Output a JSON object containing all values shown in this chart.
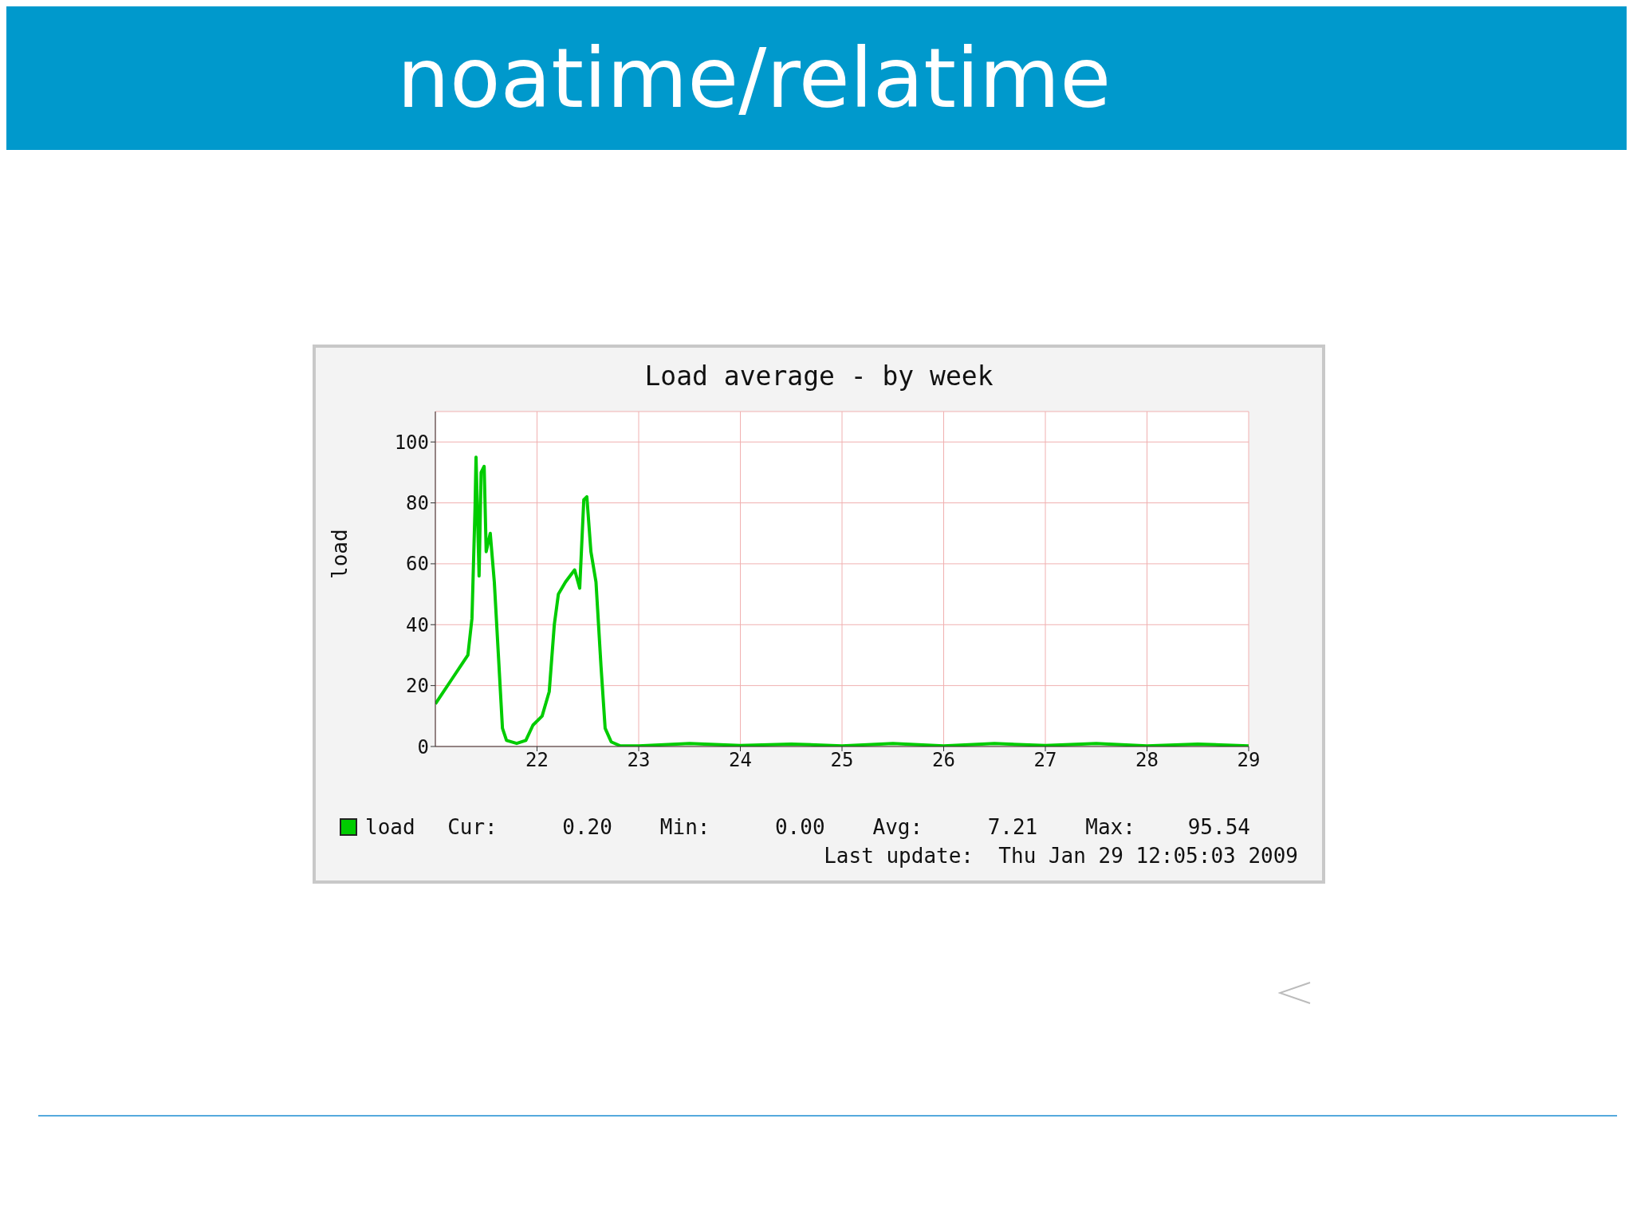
{
  "chart_data": {
    "type": "line",
    "title": "noatime/relatime",
    "subtitle": "Load average - by week",
    "ylabel": "load",
    "x": [
      21.0,
      21.06,
      21.16,
      21.26,
      21.32,
      21.36,
      21.39,
      21.4,
      21.43,
      21.45,
      21.48,
      21.5,
      21.54,
      21.58,
      21.62,
      21.66,
      21.7,
      21.8,
      21.89,
      21.96,
      22.05,
      22.12,
      22.17,
      22.21,
      22.28,
      22.37,
      22.42,
      22.46,
      22.49,
      22.53,
      22.58,
      22.63,
      22.67,
      22.73,
      22.82,
      23.0,
      23.5,
      24.0,
      24.5,
      25.0,
      25.5,
      26.0,
      26.5,
      27.0,
      27.5,
      28.0,
      28.5,
      29.0
    ],
    "series": [
      {
        "name": "load",
        "color": "#00cc00",
        "values": [
          14,
          17,
          22,
          27,
          30,
          42,
          78,
          95,
          56,
          90,
          92,
          64,
          70,
          54,
          30,
          6,
          2,
          1,
          2,
          7,
          10,
          18,
          40,
          50,
          54,
          58,
          52,
          81,
          82,
          64,
          54,
          26,
          6,
          1.5,
          0.2,
          0.2,
          1,
          0.3,
          0.8,
          0.2,
          1,
          0.2,
          1,
          0.3,
          1,
          0.2,
          0.8,
          0.2
        ]
      }
    ],
    "xlim": [
      21,
      29
    ],
    "xticks": [
      22,
      23,
      24,
      25,
      26,
      27,
      28,
      29
    ],
    "ylim": [
      0,
      110
    ],
    "yticks": [
      0,
      20,
      40,
      60,
      80,
      100
    ],
    "grid": true,
    "legend": "bottom left",
    "marker": "none",
    "line_style": "solid",
    "annotations": [
      "Cur:",
      "0.20",
      "Min:",
      "0.00",
      "Avg:",
      "7.21",
      "Max:",
      "95.54",
      "Last update:  Thu Jan 29 12:05:03 2009"
    ]
  }
}
